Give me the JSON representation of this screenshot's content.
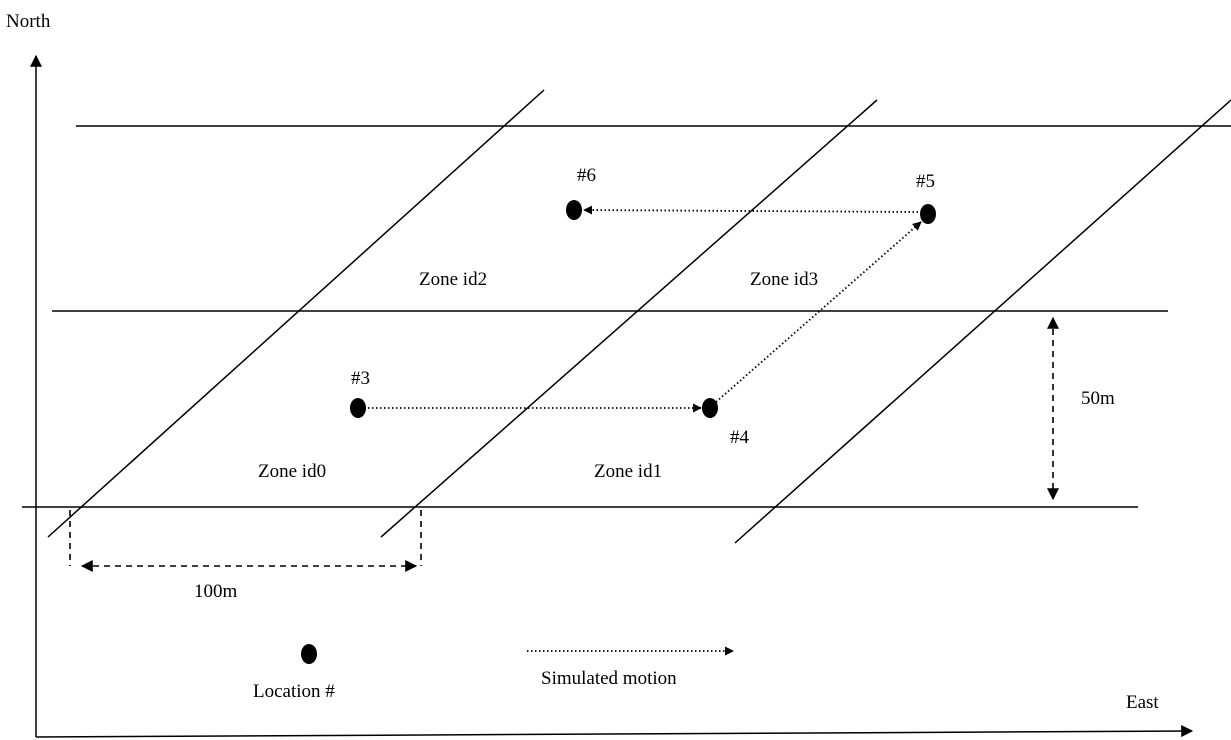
{
  "axes": {
    "y_label": "North",
    "x_label": "East"
  },
  "zones": [
    "Zone id0",
    "Zone id1",
    "Zone id2",
    "Zone id3"
  ],
  "locations": [
    "#3",
    "#4",
    "#5",
    "#6"
  ],
  "dimensions": {
    "width_label": "100m",
    "height_label": "50m"
  },
  "legend": {
    "location_label": "Location #",
    "motion_label": "Simulated motion"
  },
  "colors": {
    "ink": "#000000",
    "background": "#ffffff"
  }
}
